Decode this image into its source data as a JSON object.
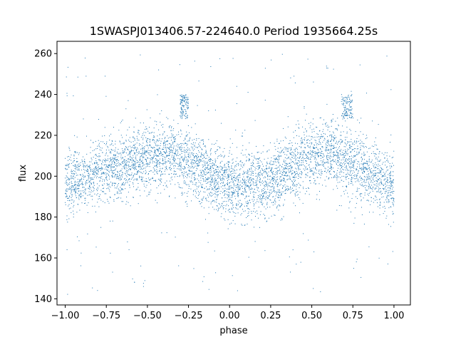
{
  "chart_data": {
    "type": "scatter",
    "title": "1SWASPJ013406.57-224640.0 Period 1935664.25s",
    "xlabel": "phase",
    "ylabel": "flux",
    "xlim": [
      -1.05,
      1.1
    ],
    "ylim": [
      137,
      266
    ],
    "x_ticks": [
      -1.0,
      -0.75,
      -0.5,
      -0.25,
      0.0,
      0.25,
      0.5,
      0.75,
      1.0
    ],
    "x_tick_labels": [
      "−1.00",
      "−0.75",
      "−0.50",
      "−0.25",
      "0.00",
      "0.25",
      "0.50",
      "0.75",
      "1.00"
    ],
    "y_ticks": [
      140,
      160,
      180,
      200,
      220,
      240,
      260
    ],
    "y_tick_labels": [
      "140",
      "160",
      "180",
      "200",
      "220",
      "240",
      "260"
    ],
    "grid": false,
    "legend": "none",
    "point_color": "#1f77b4",
    "phase_range": [
      -1.0,
      1.0
    ],
    "flux_range_observed": [
      142,
      260
    ],
    "trend": {
      "description": "quasi-sinusoidal variation repeated twice over the phase range",
      "phase": [
        -1.0,
        -0.75,
        -0.5,
        -0.4,
        -0.25,
        0.0,
        0.25,
        0.5,
        0.6,
        0.75,
        1.0
      ],
      "flux": [
        196,
        203,
        210,
        212,
        206,
        196,
        197,
        210,
        212,
        206,
        196
      ],
      "scatter_sd": 8
    },
    "highlights": [
      {
        "phase_range": [
          -0.3,
          -0.25
        ],
        "flux_range": [
          228,
          240
        ]
      },
      {
        "phase_range": [
          0.68,
          0.75
        ],
        "flux_range": [
          228,
          240
        ]
      }
    ]
  }
}
